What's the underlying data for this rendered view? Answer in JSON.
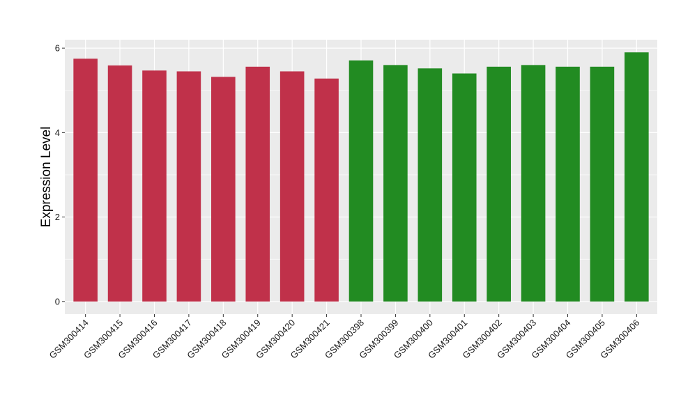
{
  "chart_data": {
    "type": "bar",
    "title": "",
    "xlabel": "",
    "ylabel": "Expression Level",
    "ylim": [
      -0.3,
      6.2
    ],
    "yticks": [
      0,
      2,
      4,
      6
    ],
    "grid": true,
    "legend": "none",
    "categories": [
      "GSM300414",
      "GSM300415",
      "GSM300416",
      "GSM300417",
      "GSM300418",
      "GSM300419",
      "GSM300420",
      "GSM300421",
      "GSM300398",
      "GSM300399",
      "GSM300400",
      "GSM300401",
      "GSM300402",
      "GSM300403",
      "GSM300404",
      "GSM300405",
      "GSM300406"
    ],
    "values": [
      5.75,
      5.59,
      5.47,
      5.45,
      5.32,
      5.56,
      5.45,
      5.28,
      5.71,
      5.6,
      5.52,
      5.4,
      5.56,
      5.6,
      5.56,
      5.56,
      5.9
    ],
    "group_colors": [
      "#c0314a",
      "#c0314a",
      "#c0314a",
      "#c0314a",
      "#c0314a",
      "#c0314a",
      "#c0314a",
      "#c0314a",
      "#228b22",
      "#228b22",
      "#228b22",
      "#228b22",
      "#228b22",
      "#228b22",
      "#228b22",
      "#228b22",
      "#228b22"
    ],
    "panel_background": "#ebebeb",
    "grid_color": "#ffffff"
  }
}
